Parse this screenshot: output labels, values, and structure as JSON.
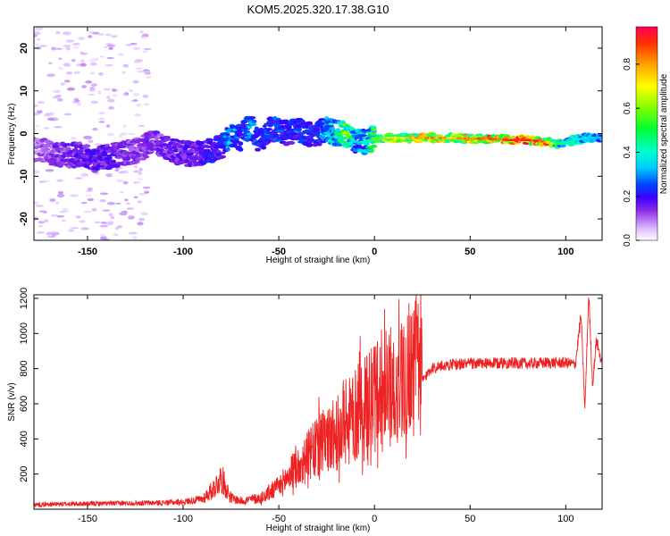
{
  "title": "KOM5.2025.320.17.38.G10",
  "chart_data": [
    {
      "type": "heatmap",
      "name": "spectrogram",
      "xlabel": "Height of straight line (km)",
      "ylabel": "Frequency (Hz)",
      "xlim": [
        -178,
        119
      ],
      "ylim": [
        -25,
        25
      ],
      "xticks": [
        -150,
        -100,
        -50,
        0,
        50,
        100
      ],
      "yticks": [
        -20,
        -10,
        0,
        10,
        20
      ],
      "colorbar": {
        "label": "Normalized spectral amplitude",
        "range": [
          0,
          0.97
        ],
        "ticks": [
          0.0,
          0.2,
          0.4,
          0.6,
          0.8
        ],
        "tick_labels": [
          "0.0",
          "0.2",
          "0.4",
          "0.6",
          "0.8"
        ],
        "colormap": [
          "#ffffff",
          "#d9b3ff",
          "#8a2be2",
          "#3a00ff",
          "#0044ff",
          "#00ccff",
          "#00ffcc",
          "#00ff33",
          "#7fff00",
          "#ffff00",
          "#ffa500",
          "#ff3300",
          "#ff0055"
        ]
      },
      "ridge": {
        "x": [
          -175,
          -165,
          -155,
          -145,
          -135,
          -125,
          -115,
          -105,
          -95,
          -85,
          -80,
          -75,
          -70,
          -65,
          -60,
          -55,
          -50,
          -45,
          -40,
          -35,
          -30,
          -25,
          -20,
          -15,
          -10,
          -5,
          0,
          10,
          20,
          30,
          40,
          50,
          60,
          70,
          80,
          90,
          95,
          100,
          110,
          119
        ],
        "y": [
          -4,
          -5,
          -5,
          -6,
          -5,
          -4,
          -2,
          -4,
          -5,
          -4,
          -3,
          0,
          -1,
          2,
          -2,
          1,
          1,
          0,
          1,
          0,
          0,
          1,
          0,
          0,
          -2,
          -2,
          -1,
          -1,
          -1,
          -1,
          -1,
          -1.2,
          -1.2,
          -1.5,
          -1.5,
          -2,
          -2.5,
          -2,
          -1,
          -1
        ],
        "amplitude": [
          0.15,
          0.2,
          0.22,
          0.25,
          0.22,
          0.18,
          0.2,
          0.22,
          0.24,
          0.3,
          0.28,
          0.45,
          0.3,
          0.45,
          0.3,
          0.35,
          0.35,
          0.3,
          0.35,
          0.32,
          0.3,
          0.45,
          0.5,
          0.65,
          0.4,
          0.45,
          0.6,
          0.7,
          0.75,
          0.8,
          0.75,
          0.8,
          0.85,
          0.9,
          0.92,
          0.85,
          0.6,
          0.5,
          0.45,
          0.4
        ]
      }
    },
    {
      "type": "line",
      "name": "snr",
      "xlabel": "Height of straight line (km)",
      "ylabel": "SNR (v/v)",
      "xlim": [
        -178,
        119
      ],
      "ylim": [
        0,
        1220
      ],
      "xticks": [
        -150,
        -100,
        -50,
        0,
        50,
        100
      ],
      "yticks": [
        200,
        400,
        600,
        800,
        1000,
        1200
      ],
      "color": "#ee2222",
      "envelope": {
        "x": [
          -178,
          -150,
          -110,
          -100,
          -90,
          -85,
          -80,
          -75,
          -70,
          -60,
          -50,
          -40,
          -30,
          -20,
          -10,
          0,
          10,
          20,
          25,
          30,
          40,
          50,
          60,
          70,
          80,
          90,
          100,
          105,
          108,
          110,
          112,
          114,
          116,
          119
        ],
        "y": [
          25,
          30,
          35,
          40,
          55,
          100,
          170,
          60,
          45,
          60,
          120,
          230,
          330,
          400,
          500,
          590,
          680,
          780,
          730,
          800,
          820,
          825,
          825,
          830,
          825,
          830,
          830,
          820,
          1100,
          560,
          1220,
          700,
          960,
          820
        ]
      }
    }
  ]
}
